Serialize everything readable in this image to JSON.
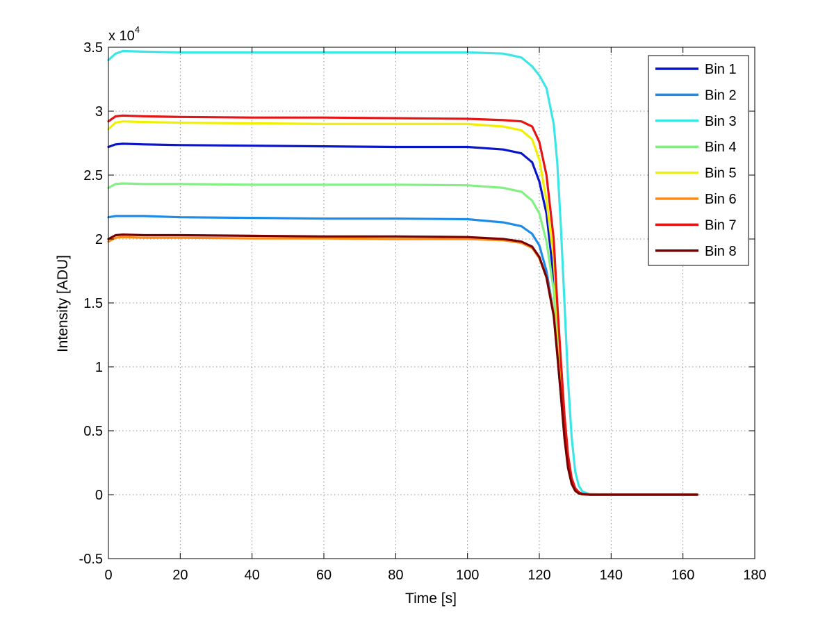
{
  "chart_data": {
    "type": "line",
    "title": "",
    "xlabel": "Time [s]",
    "ylabel": "Intensity [ADU]",
    "xlim": [
      0,
      180
    ],
    "ylim": [
      -0.5,
      3.5
    ],
    "x_ticks": [
      "0",
      "20",
      "40",
      "60",
      "80",
      "100",
      "120",
      "140",
      "160",
      "180"
    ],
    "y_ticks": [
      "-0.5",
      "0",
      "0.5",
      "1",
      "1.5",
      "2",
      "2.5",
      "3",
      "3.5"
    ],
    "y_multiplier": {
      "base": "x 10",
      "exponent": "4"
    },
    "grid": true,
    "legend_position": "top-right",
    "x": [
      0,
      2,
      4,
      10,
      20,
      40,
      60,
      80,
      100,
      110,
      115,
      118,
      120,
      122,
      124,
      125,
      126,
      127,
      128,
      129,
      130,
      131,
      132,
      134,
      140,
      150,
      160,
      164
    ],
    "series": [
      {
        "name": "Bin 1",
        "color": "#0a14c8",
        "values": [
          2.72,
          2.74,
          2.745,
          2.74,
          2.735,
          2.73,
          2.725,
          2.72,
          2.72,
          2.7,
          2.67,
          2.6,
          2.45,
          2.2,
          1.7,
          1.3,
          0.9,
          0.5,
          0.25,
          0.1,
          0.04,
          0.015,
          0.005,
          0,
          0,
          0,
          0,
          0
        ]
      },
      {
        "name": "Bin 2",
        "color": "#1e8ce6",
        "values": [
          2.17,
          2.18,
          2.18,
          2.18,
          2.17,
          2.165,
          2.16,
          2.16,
          2.155,
          2.13,
          2.1,
          2.04,
          1.95,
          1.75,
          1.42,
          1.1,
          0.78,
          0.45,
          0.22,
          0.09,
          0.035,
          0.012,
          0.004,
          0,
          0,
          0,
          0,
          0
        ]
      },
      {
        "name": "Bin 3",
        "color": "#3ce6e6",
        "values": [
          3.4,
          3.45,
          3.47,
          3.465,
          3.46,
          3.46,
          3.46,
          3.46,
          3.46,
          3.45,
          3.42,
          3.35,
          3.28,
          3.18,
          2.9,
          2.6,
          2.1,
          1.5,
          0.9,
          0.45,
          0.18,
          0.07,
          0.025,
          0.005,
          0,
          0,
          0,
          0
        ]
      },
      {
        "name": "Bin 4",
        "color": "#82f082",
        "values": [
          2.4,
          2.43,
          2.435,
          2.43,
          2.43,
          2.425,
          2.425,
          2.425,
          2.42,
          2.4,
          2.37,
          2.3,
          2.2,
          1.98,
          1.6,
          1.25,
          0.88,
          0.5,
          0.24,
          0.1,
          0.04,
          0.015,
          0.005,
          0,
          0,
          0,
          0,
          0
        ]
      },
      {
        "name": "Bin 5",
        "color": "#f0f000",
        "values": [
          2.86,
          2.91,
          2.92,
          2.915,
          2.91,
          2.905,
          2.9,
          2.9,
          2.9,
          2.88,
          2.85,
          2.78,
          2.62,
          2.3,
          1.85,
          1.4,
          1.0,
          0.6,
          0.3,
          0.12,
          0.05,
          0.02,
          0.006,
          0,
          0,
          0,
          0,
          0
        ]
      },
      {
        "name": "Bin 6",
        "color": "#ff8a14",
        "values": [
          1.98,
          2.01,
          2.015,
          2.01,
          2.01,
          2.005,
          2.005,
          2.0,
          2.0,
          1.99,
          1.97,
          1.93,
          1.85,
          1.7,
          1.42,
          1.12,
          0.8,
          0.46,
          0.22,
          0.09,
          0.035,
          0.012,
          0.004,
          0,
          0,
          0,
          0,
          0
        ]
      },
      {
        "name": "Bin 7",
        "color": "#e61414",
        "values": [
          2.92,
          2.96,
          2.965,
          2.96,
          2.955,
          2.95,
          2.95,
          2.945,
          2.94,
          2.93,
          2.92,
          2.88,
          2.76,
          2.5,
          2.0,
          1.5,
          1.05,
          0.62,
          0.31,
          0.13,
          0.05,
          0.02,
          0.006,
          0,
          0,
          0,
          0,
          0
        ]
      },
      {
        "name": "Bin 8",
        "color": "#780000",
        "values": [
          2.0,
          2.03,
          2.035,
          2.03,
          2.03,
          2.025,
          2.02,
          2.02,
          2.015,
          2.0,
          1.98,
          1.94,
          1.86,
          1.7,
          1.4,
          1.1,
          0.78,
          0.44,
          0.21,
          0.085,
          0.03,
          0.01,
          0.003,
          0,
          0,
          0,
          0,
          0
        ]
      }
    ]
  }
}
